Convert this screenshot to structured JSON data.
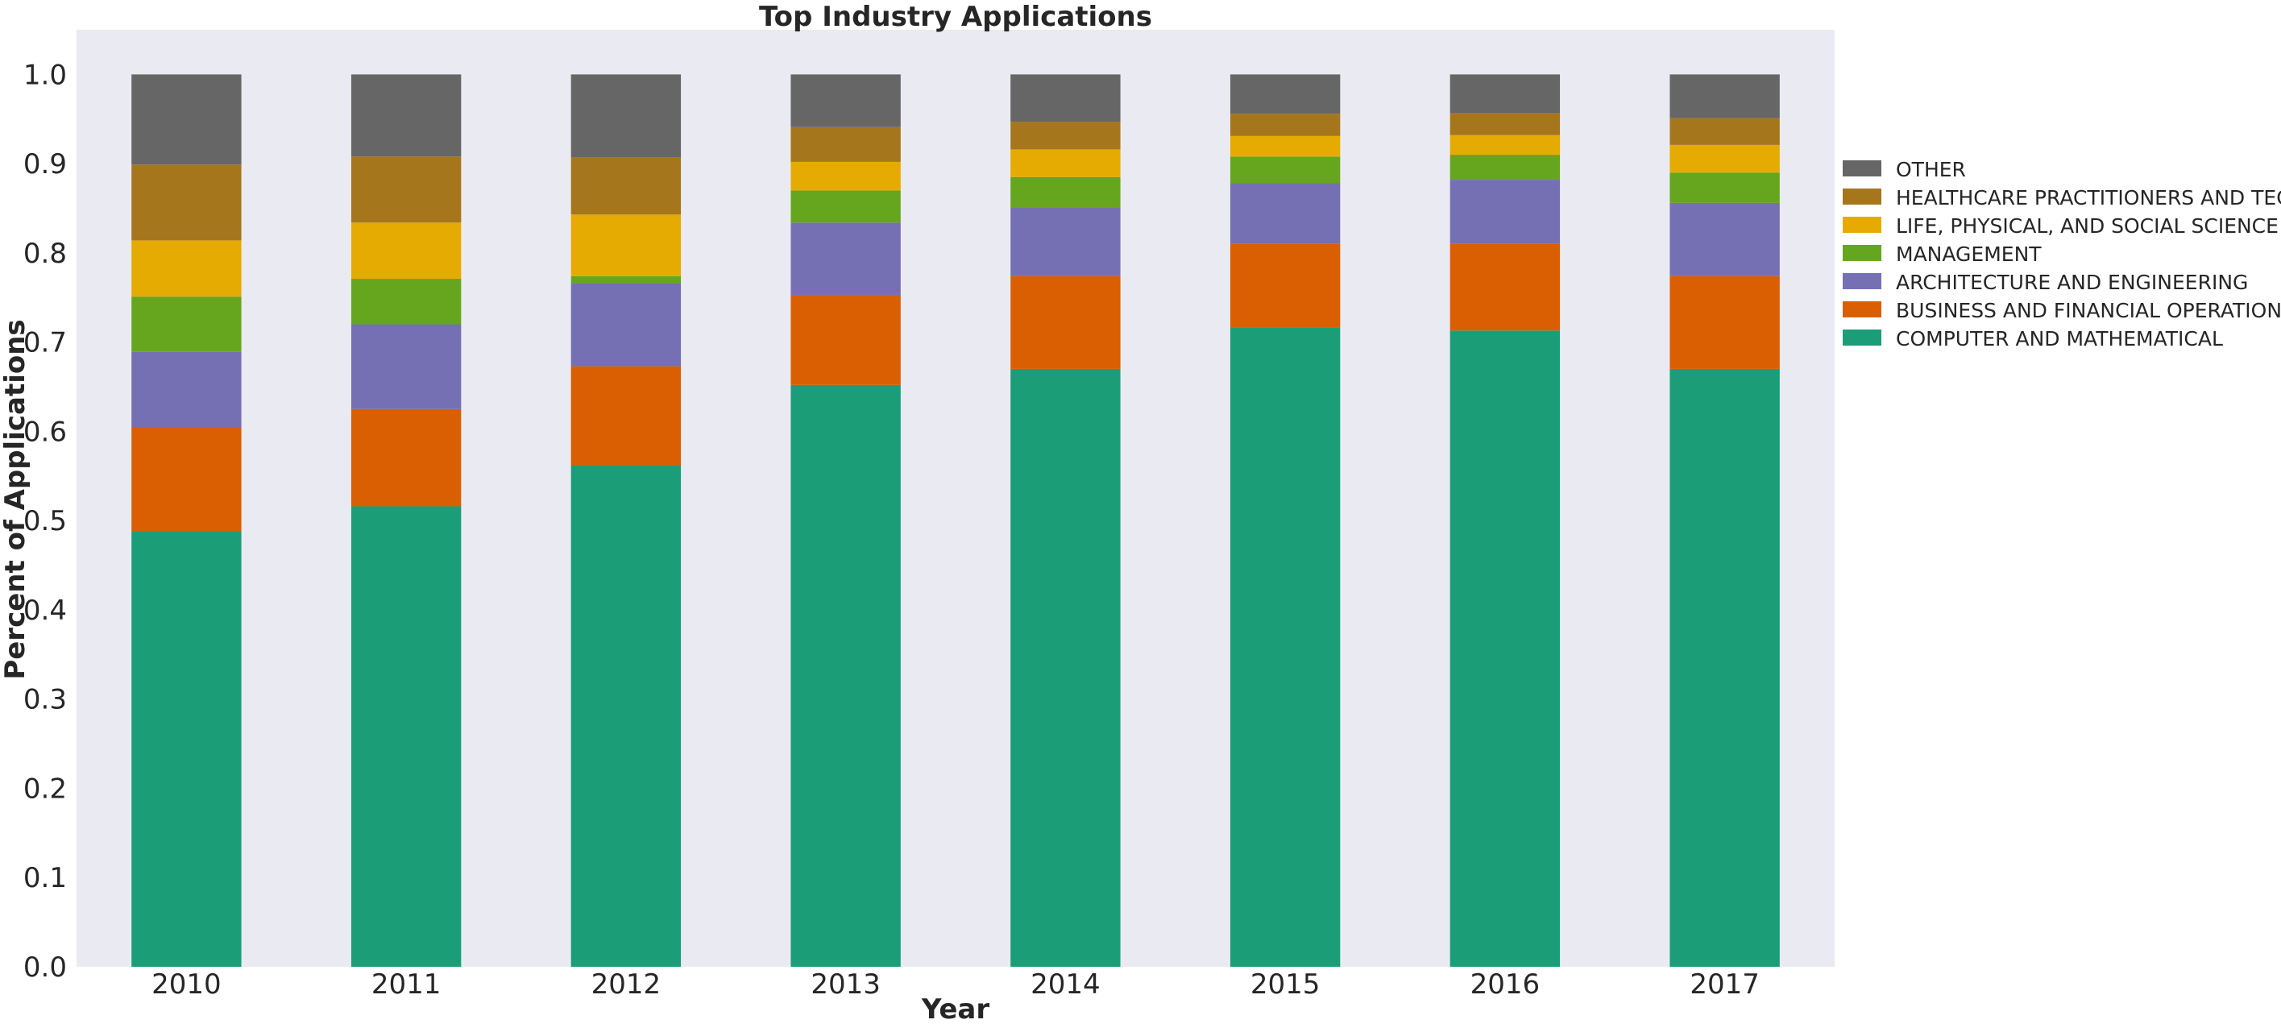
{
  "chart_data": {
    "type": "bar",
    "stacked": true,
    "title": "Top Industry Applications",
    "xlabel": "Year",
    "ylabel": "Percent of Applications",
    "ylim": [
      0,
      1.05
    ],
    "yticks": [
      "0.0",
      "0.1",
      "0.2",
      "0.3",
      "0.4",
      "0.5",
      "0.6",
      "0.7",
      "0.8",
      "0.9",
      "1.0"
    ],
    "grid": false,
    "legend_position": "right",
    "plot_background": "#EAEAF2",
    "categories": [
      "2010",
      "2011",
      "2012",
      "2013",
      "2014",
      "2015",
      "2016",
      "2017"
    ],
    "series": [
      {
        "name": "COMPUTER AND MATHEMATICAL",
        "color": "#1B9E77",
        "values": [
          0.488,
          0.516,
          0.562,
          0.652,
          0.67,
          0.716,
          0.713,
          0.67
        ]
      },
      {
        "name": "BUSINESS AND FINANCIAL OPERATIONS",
        "color": "#D95F02",
        "values": [
          0.116,
          0.109,
          0.111,
          0.101,
          0.104,
          0.094,
          0.097,
          0.104
        ]
      },
      {
        "name": "ARCHITECTURE AND ENGINEERING",
        "color": "#7570B3",
        "values": [
          0.085,
          0.095,
          0.093,
          0.081,
          0.077,
          0.068,
          0.072,
          0.082
        ]
      },
      {
        "name": "MANAGEMENT",
        "color": "#66A61E",
        "values": [
          0.062,
          0.051,
          0.008,
          0.036,
          0.034,
          0.03,
          0.028,
          0.034
        ]
      },
      {
        "name": "LIFE, PHYSICAL, AND SOCIAL SCIENCE",
        "color": "#E6AB02",
        "values": [
          0.063,
          0.063,
          0.069,
          0.032,
          0.031,
          0.023,
          0.022,
          0.031
        ]
      },
      {
        "name": "HEALTHCARE PRACTITIONERS AND TECHNICAL",
        "color": "#A6761D",
        "values": [
          0.085,
          0.074,
          0.064,
          0.039,
          0.031,
          0.025,
          0.025,
          0.03
        ]
      },
      {
        "name": "OTHER",
        "color": "#666666",
        "values": [
          0.101,
          0.092,
          0.093,
          0.059,
          0.053,
          0.044,
          0.043,
          0.049
        ]
      }
    ]
  }
}
